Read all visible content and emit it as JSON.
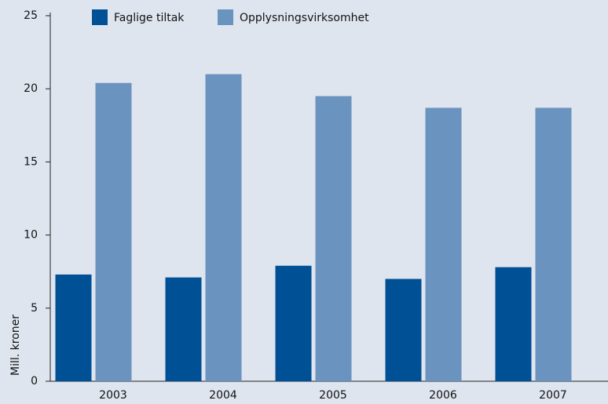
{
  "chart_data": {
    "type": "bar",
    "y_label": "Mill. kroner",
    "categories": [
      "2003",
      "2004",
      "2005",
      "2006",
      "2007"
    ],
    "series": [
      {
        "name": "Faglige tiltak",
        "color": "#005096",
        "values": [
          7.3,
          7.1,
          7.9,
          7.0,
          7.8
        ]
      },
      {
        "name": "Opplysningsvirksomhet",
        "color": "#6a93c0",
        "values": [
          20.4,
          21.0,
          19.5,
          18.7,
          18.7
        ]
      }
    ],
    "ylim": [
      0,
      25
    ],
    "yticks": [
      0,
      5,
      10,
      15,
      20,
      25
    ],
    "legend": "top"
  }
}
